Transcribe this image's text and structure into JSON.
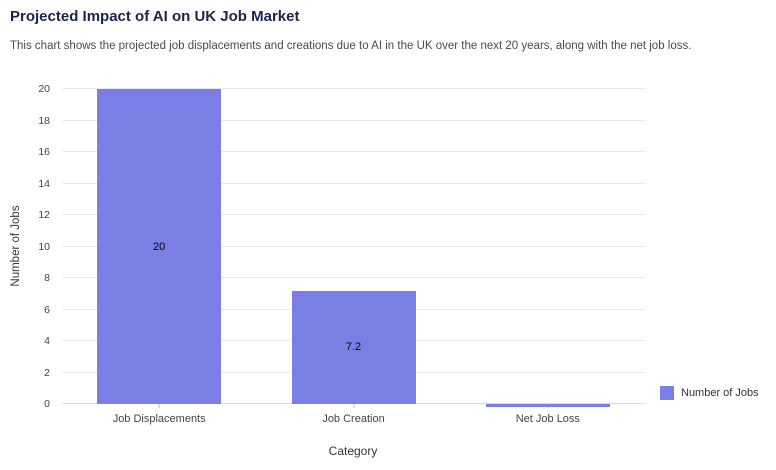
{
  "header": {
    "title": "Projected Impact of AI on UK Job Market",
    "subtitle": "This chart shows the projected job displacements and creations due to AI in the UK over the next 20 years, along with the net job loss."
  },
  "chart_data": {
    "type": "bar",
    "categories": [
      "Job Displacements",
      "Job Creation",
      "Net Job Loss"
    ],
    "values": [
      20,
      7.2,
      -0.2
    ],
    "bar_labels": [
      "20",
      "7.2",
      ""
    ],
    "title": "Projected Impact of AI on UK Job Market",
    "xlabel": "Category",
    "ylabel": "Number of Jobs",
    "ylim": [
      0,
      20
    ],
    "ytick_step": 2,
    "grid": true,
    "bar_color": "#7b7fe5",
    "legend": {
      "label": "Number of Jobs",
      "position": "bottom-right"
    }
  }
}
